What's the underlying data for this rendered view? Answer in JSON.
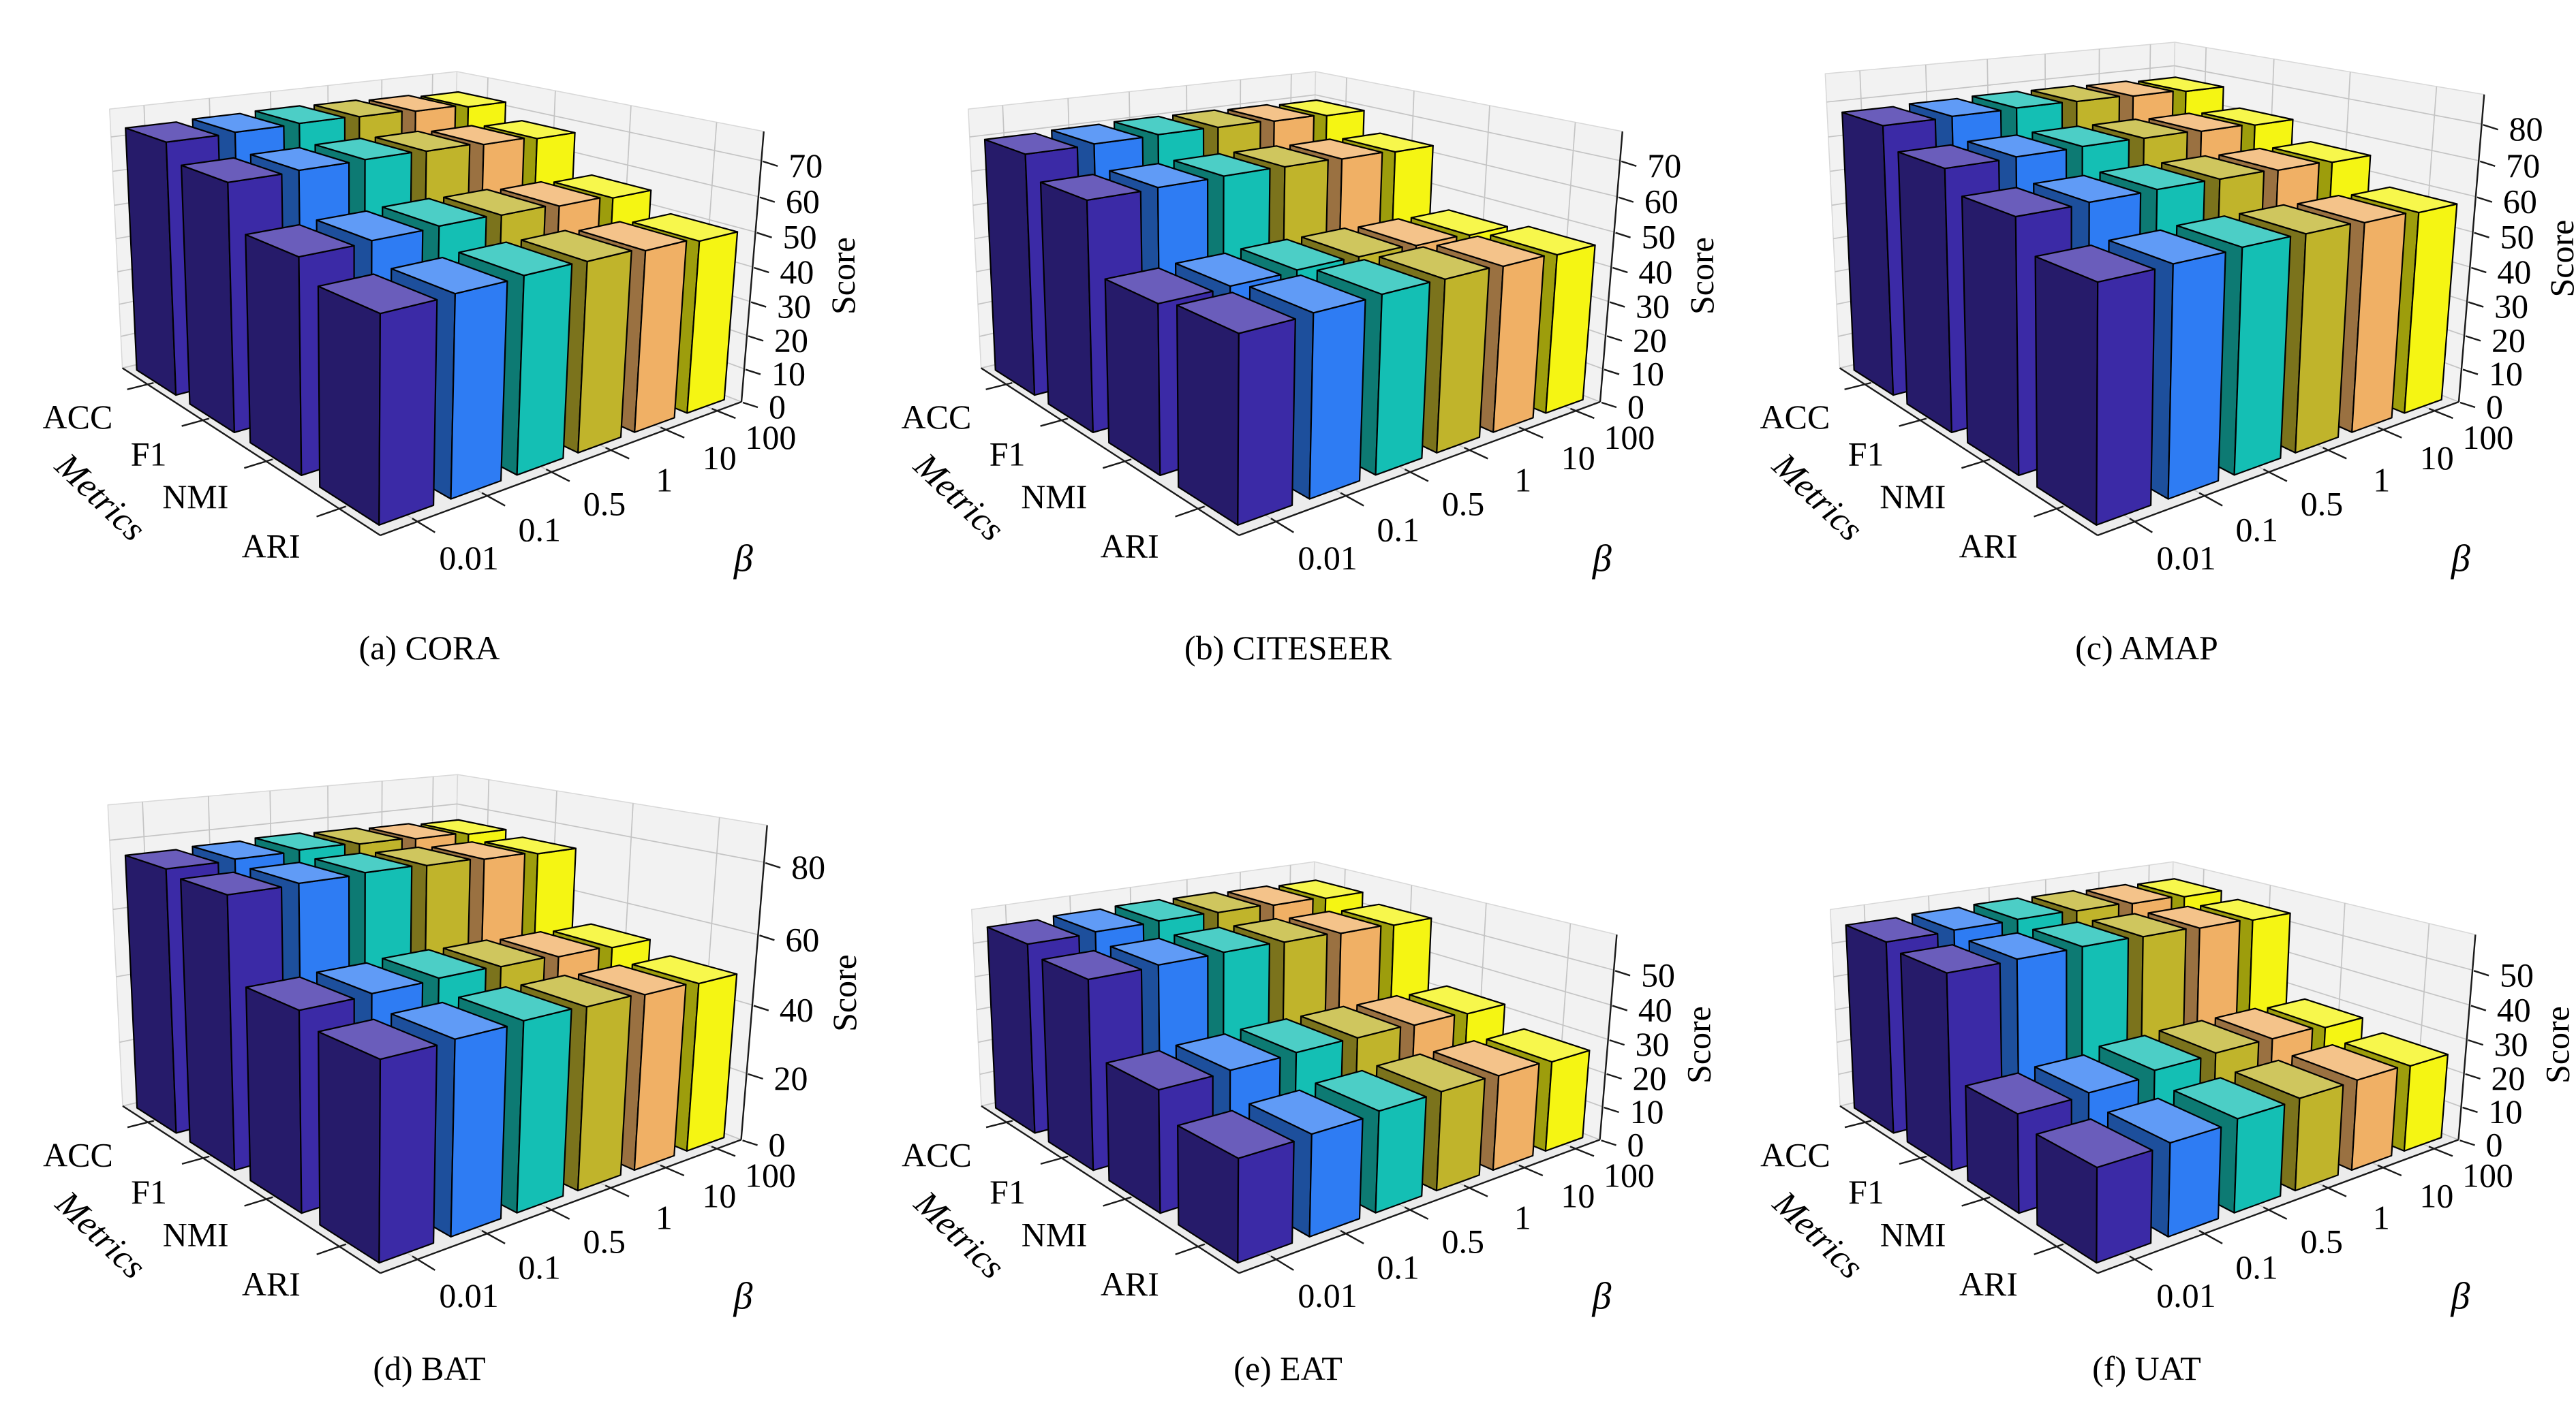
{
  "figure": {
    "background": "#ffffff",
    "beta_axis_label": "β",
    "metrics_axis_label": "Metrics",
    "score_axis_label": "Score",
    "beta_values": [
      "0.01",
      "0.1",
      "0.5",
      "1",
      "10",
      "100"
    ],
    "metrics": [
      "ACC",
      "F1",
      "NMI",
      "ARI"
    ],
    "bar_colors": [
      "#3B2AA6",
      "#2E7CF3",
      "#14BFB4",
      "#C0B42B",
      "#F0B065",
      "#F5F513"
    ]
  },
  "chart_data": [
    {
      "type": "bar",
      "view": "3d-bar-grid",
      "id": "a",
      "caption": "(a) CORA",
      "dataset": "CORA",
      "xlabel": "β",
      "ylabel": "Metrics",
      "zlabel": "Score",
      "categories": [
        "0.01",
        "0.1",
        "0.5",
        "1",
        "10",
        "100"
      ],
      "z_ticks": [
        0,
        10,
        20,
        30,
        40,
        50,
        60,
        70
      ],
      "zlim": [
        0,
        78
      ],
      "grid": true,
      "series": [
        {
          "name": "ACC",
          "values": [
            72.9,
            73.2,
            73.4,
            73.1,
            72.6,
            71.8
          ]
        },
        {
          "name": "F1",
          "values": [
            68.0,
            68.3,
            68.5,
            68.2,
            67.6,
            66.9
          ]
        },
        {
          "name": "NMI",
          "values": [
            56.2,
            56.6,
            56.9,
            56.5,
            55.8,
            55.0
          ]
        },
        {
          "name": "ARI",
          "values": [
            51.0,
            51.4,
            51.8,
            51.5,
            50.6,
            49.6
          ]
        }
      ]
    },
    {
      "type": "bar",
      "view": "3d-bar-grid",
      "id": "b",
      "caption": "(b) CITESEER",
      "dataset": "CITESEER",
      "xlabel": "β",
      "ylabel": "Metrics",
      "zlabel": "Score",
      "categories": [
        "0.01",
        "0.1",
        "0.5",
        "1",
        "10",
        "100"
      ],
      "z_ticks": [
        0,
        10,
        20,
        30,
        40,
        50,
        60,
        70
      ],
      "zlim": [
        0,
        78
      ],
      "grid": true,
      "series": [
        {
          "name": "ACC",
          "values": [
            69.6,
            69.9,
            70.1,
            69.9,
            69.5,
            69.0
          ]
        },
        {
          "name": "F1",
          "values": [
            63.4,
            63.7,
            63.9,
            63.7,
            63.3,
            62.8
          ]
        },
        {
          "name": "NMI",
          "values": [
            44.6,
            44.9,
            45.2,
            45.0,
            44.5,
            44.0
          ]
        },
        {
          "name": "ARI",
          "values": [
            46.4,
            46.8,
            47.1,
            46.9,
            46.4,
            45.8
          ]
        }
      ]
    },
    {
      "type": "bar",
      "view": "3d-bar-grid",
      "id": "c",
      "caption": "(c) AMAP",
      "dataset": "AMAP",
      "xlabel": "β",
      "ylabel": "Metrics",
      "zlabel": "Score",
      "categories": [
        "0.01",
        "0.1",
        "0.5",
        "1",
        "10",
        "100"
      ],
      "z_ticks": [
        0,
        10,
        20,
        30,
        40,
        50,
        60,
        70,
        80
      ],
      "zlim": [
        0,
        88
      ],
      "grid": true,
      "series": [
        {
          "name": "ACC",
          "values": [
            77.4,
            77.7,
            77.9,
            77.7,
            77.3,
            76.8
          ]
        },
        {
          "name": "F1",
          "values": [
            71.6,
            71.9,
            72.1,
            71.9,
            71.5,
            71.0
          ]
        },
        {
          "name": "NMI",
          "values": [
            66.0,
            66.3,
            66.5,
            66.3,
            65.9,
            65.4
          ]
        },
        {
          "name": "ARI",
          "values": [
            58.2,
            58.5,
            58.8,
            58.6,
            58.1,
            57.5
          ]
        }
      ]
    },
    {
      "type": "bar",
      "view": "3d-bar-grid",
      "id": "d",
      "caption": "(d) BAT",
      "dataset": "BAT",
      "xlabel": "β",
      "ylabel": "Metrics",
      "zlabel": "Score",
      "categories": [
        "0.01",
        "0.1",
        "0.5",
        "1",
        "10",
        "100"
      ],
      "z_ticks": [
        0,
        20,
        40,
        60,
        80
      ],
      "zlim": [
        0,
        90
      ],
      "grid": true,
      "series": [
        {
          "name": "ACC",
          "values": [
            76.0,
            76.4,
            76.8,
            76.4,
            75.9,
            75.3
          ]
        },
        {
          "name": "F1",
          "values": [
            74.6,
            75.0,
            75.4,
            75.0,
            74.5,
            73.9
          ]
        },
        {
          "name": "NMI",
          "values": [
            52.4,
            52.8,
            53.2,
            52.8,
            52.2,
            51.6
          ]
        },
        {
          "name": "ARI",
          "values": [
            49.2,
            49.6,
            50.0,
            49.6,
            49.0,
            48.4
          ]
        }
      ]
    },
    {
      "type": "bar",
      "view": "3d-bar-grid",
      "id": "e",
      "caption": "(e) EAT",
      "dataset": "EAT",
      "xlabel": "β",
      "ylabel": "Metrics",
      "zlabel": "Score",
      "categories": [
        "0.01",
        "0.1",
        "0.5",
        "1",
        "10",
        "100"
      ],
      "z_ticks": [
        0,
        10,
        20,
        30,
        40,
        50
      ],
      "zlim": [
        0,
        60
      ],
      "grid": true,
      "series": [
        {
          "name": "ACC",
          "values": [
            55.2,
            55.6,
            55.8,
            55.5,
            55.0,
            54.5
          ]
        },
        {
          "name": "F1",
          "values": [
            52.6,
            53.0,
            53.2,
            52.9,
            52.4,
            51.9
          ]
        },
        {
          "name": "NMI",
          "values": [
            32.4,
            32.8,
            33.1,
            32.9,
            32.4,
            31.8
          ]
        },
        {
          "name": "ARI",
          "values": [
            25.8,
            26.3,
            27.0,
            27.2,
            26.8,
            26.2
          ]
        }
      ]
    },
    {
      "type": "bar",
      "view": "3d-bar-grid",
      "id": "f",
      "caption": "(f) UAT",
      "dataset": "UAT",
      "xlabel": "β",
      "ylabel": "Metrics",
      "zlabel": "Score",
      "categories": [
        "0.01",
        "0.1",
        "0.5",
        "1",
        "10",
        "100"
      ],
      "z_ticks": [
        0,
        10,
        20,
        30,
        40,
        50
      ],
      "zlim": [
        0,
        60
      ],
      "grid": true,
      "series": [
        {
          "name": "ACC",
          "values": [
            55.8,
            56.1,
            56.3,
            56.0,
            55.5,
            55.0
          ]
        },
        {
          "name": "F1",
          "values": [
            54.3,
            54.6,
            54.8,
            54.5,
            54.0,
            53.5
          ]
        },
        {
          "name": "NMI",
          "values": [
            26.2,
            26.8,
            28.2,
            28.6,
            28.4,
            27.6
          ]
        },
        {
          "name": "ARI",
          "values": [
            23.6,
            24.1,
            25.0,
            25.4,
            25.6,
            25.0
          ]
        }
      ]
    }
  ]
}
